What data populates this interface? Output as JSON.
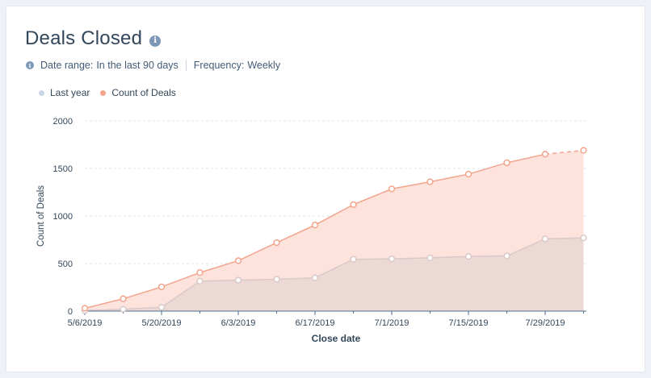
{
  "header": {
    "title": "Deals Closed",
    "date_range_label": "Date range:",
    "date_range_value": "In the last 90 days",
    "frequency_label": "Frequency:",
    "frequency_value": "Weekly"
  },
  "legend": {
    "items": [
      {
        "label": "Last year",
        "color": "#cbd6e2"
      },
      {
        "label": "Count of Deals",
        "color": "#f2a48d"
      }
    ]
  },
  "colors": {
    "current_line": "#f2a48d",
    "current_fill": "#fde3dc",
    "last_year_line": "#d9c9c9",
    "last_year_fill": "#ecd8d5",
    "grid": "#dfe3eb"
  },
  "chart_data": {
    "type": "area",
    "title": "Deals Closed",
    "xlabel": "Close date",
    "ylabel": "Count of Deals",
    "ylim": [
      0,
      2000
    ],
    "yticks": [
      0,
      500,
      1000,
      1500,
      2000
    ],
    "x": [
      "5/6/2019",
      "5/13/2019",
      "5/20/2019",
      "5/27/2019",
      "6/3/2019",
      "6/10/2019",
      "6/17/2019",
      "6/24/2019",
      "7/1/2019",
      "7/8/2019",
      "7/15/2019",
      "7/22/2019",
      "7/29/2019",
      "8/5/2019"
    ],
    "xtick_labels": [
      "5/6/2019",
      "5/20/2019",
      "6/3/2019",
      "6/17/2019",
      "7/1/2019",
      "7/15/2019",
      "7/29/2019"
    ],
    "grid": true,
    "legend_position": "top-left",
    "series": [
      {
        "name": "Count of Deals",
        "values": [
          30,
          130,
          255,
          405,
          530,
          720,
          905,
          1120,
          1285,
          1360,
          1440,
          1560,
          1650,
          1690
        ],
        "last_segment_dashed": true
      },
      {
        "name": "Last year",
        "values": [
          5,
          20,
          40,
          315,
          325,
          335,
          350,
          545,
          550,
          560,
          575,
          580,
          760,
          770
        ]
      }
    ]
  }
}
